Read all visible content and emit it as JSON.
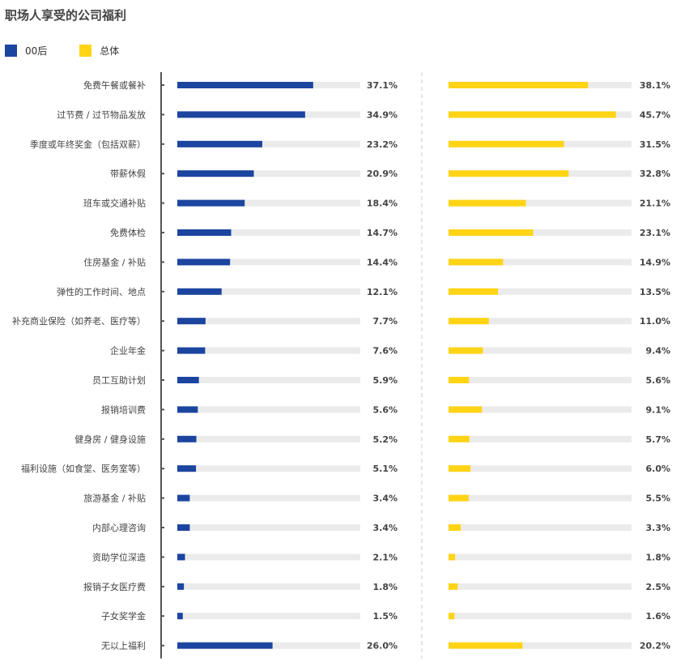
{
  "title": "职场人享受的公司福利",
  "legend": [
    {
      "label": "00后",
      "color": "#1c45a0"
    },
    {
      "label": "总体",
      "color": "#ffd415"
    }
  ],
  "chart_data": {
    "type": "bar",
    "orientation": "horizontal",
    "title": "职场人享受的公司福利",
    "value_format": "percent_1dp",
    "xlim": [
      0,
      50
    ],
    "track_color": "#ebebeb",
    "categories": [
      "免费午餐或餐补",
      "过节费 / 过节物品发放",
      "季度或年终奖金（包括双薪）",
      "带薪休假",
      "班车或交通补贴",
      "免费体检",
      "住房基金 / 补贴",
      "弹性的工作时间、地点",
      "补充商业保险（如养老、医疗等）",
      "企业年金",
      "员工互助计划",
      "报销培训费",
      "健身房 / 健身设施",
      "福利设施（如食堂、医务室等）",
      "旅游基金 / 补贴",
      "内部心理咨询",
      "资助学位深造",
      "报销子女医疗费",
      "子女奖学金",
      "无以上福利"
    ],
    "series": [
      {
        "name": "00后",
        "color": "#1c45a0",
        "values": [
          37.1,
          34.9,
          23.2,
          20.9,
          18.4,
          14.7,
          14.4,
          12.1,
          7.7,
          7.6,
          5.9,
          5.6,
          5.2,
          5.1,
          3.4,
          3.4,
          2.1,
          1.8,
          1.5,
          26.0
        ]
      },
      {
        "name": "总体",
        "color": "#ffd415",
        "values": [
          38.1,
          45.7,
          31.5,
          32.8,
          21.1,
          23.1,
          14.9,
          13.5,
          11.0,
          9.4,
          5.6,
          9.1,
          5.7,
          6.0,
          5.5,
          3.3,
          1.8,
          2.5,
          1.6,
          20.2
        ]
      }
    ]
  }
}
